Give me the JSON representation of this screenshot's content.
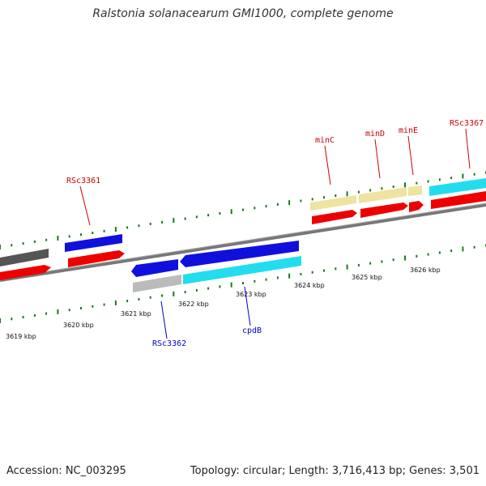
{
  "title": "Ralstonia solanacearum GMI1000, complete genome",
  "footer": {
    "accession": "Accession: NC_003295",
    "summary": "Topology: circular; Length: 3,716,413 bp; Genes: 3,501"
  },
  "tick_labels": [
    "3619 kbp",
    "3620 kbp",
    "3621 kbp",
    "3622 kbp",
    "3623 kbp",
    "3624 kbp",
    "3625 kbp",
    "3626 kbp"
  ],
  "gene_labels": {
    "forward": [
      "RSc3361",
      "minC",
      "minD",
      "minE",
      "RSc3367"
    ],
    "reverse": [
      "RSc3362",
      "cpdB"
    ]
  },
  "colors": {
    "forward_label": "#cc0000",
    "reverse_label": "#0000cc",
    "backbone": "#777777",
    "tick": "#1a7a1a",
    "cds": "#ee0000",
    "blue_gene": "#1010dd",
    "cyan_gene": "#22ddee",
    "tan_gene": "#eee3a0",
    "gray_gene": "#bbbbbb",
    "dark_gene": "#555555"
  }
}
